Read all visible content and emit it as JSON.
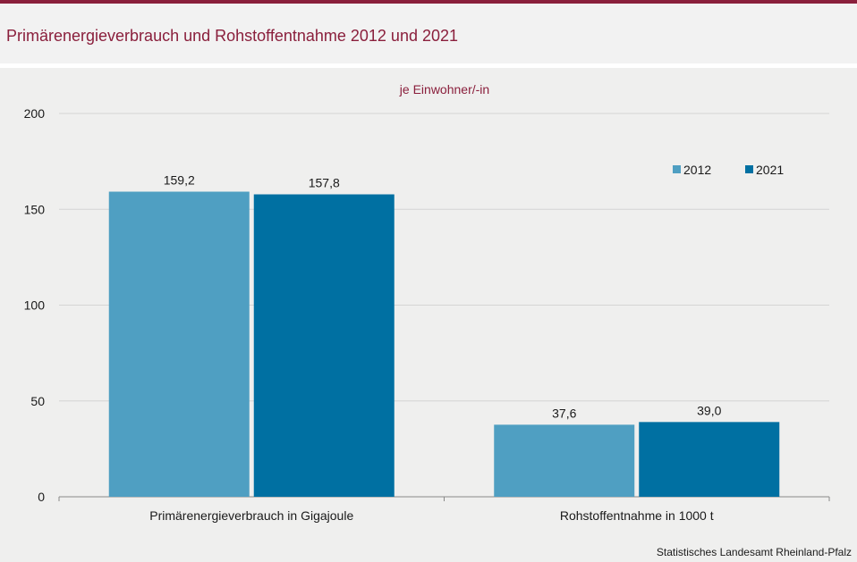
{
  "title": "Primärenergieverbrauch und Rohstoffentnahme 2012 und 2021",
  "source": "Statistisches Landesamt Rheinland-Pfalz",
  "colors": {
    "title": "#8a1f3c",
    "series_2012": "#4f9fc2",
    "series_2021": "#0070a2"
  },
  "chart_data": {
    "type": "bar",
    "subtitle": "je Einwohner/-in",
    "categories": [
      "Primärenergieverbrauch in Gigajoule",
      "Rohstoffentnahme in 1000 t"
    ],
    "series": [
      {
        "name": "2012",
        "values": [
          159.2,
          37.6
        ],
        "labels": [
          "159,2",
          "37,6"
        ]
      },
      {
        "name": "2021",
        "values": [
          157.8,
          39.0
        ],
        "labels": [
          "157,8",
          "39,0"
        ]
      }
    ],
    "ylim": [
      0,
      200
    ],
    "yticks": [
      0,
      50,
      100,
      150,
      200
    ],
    "grid": true,
    "legend": "top-right"
  }
}
